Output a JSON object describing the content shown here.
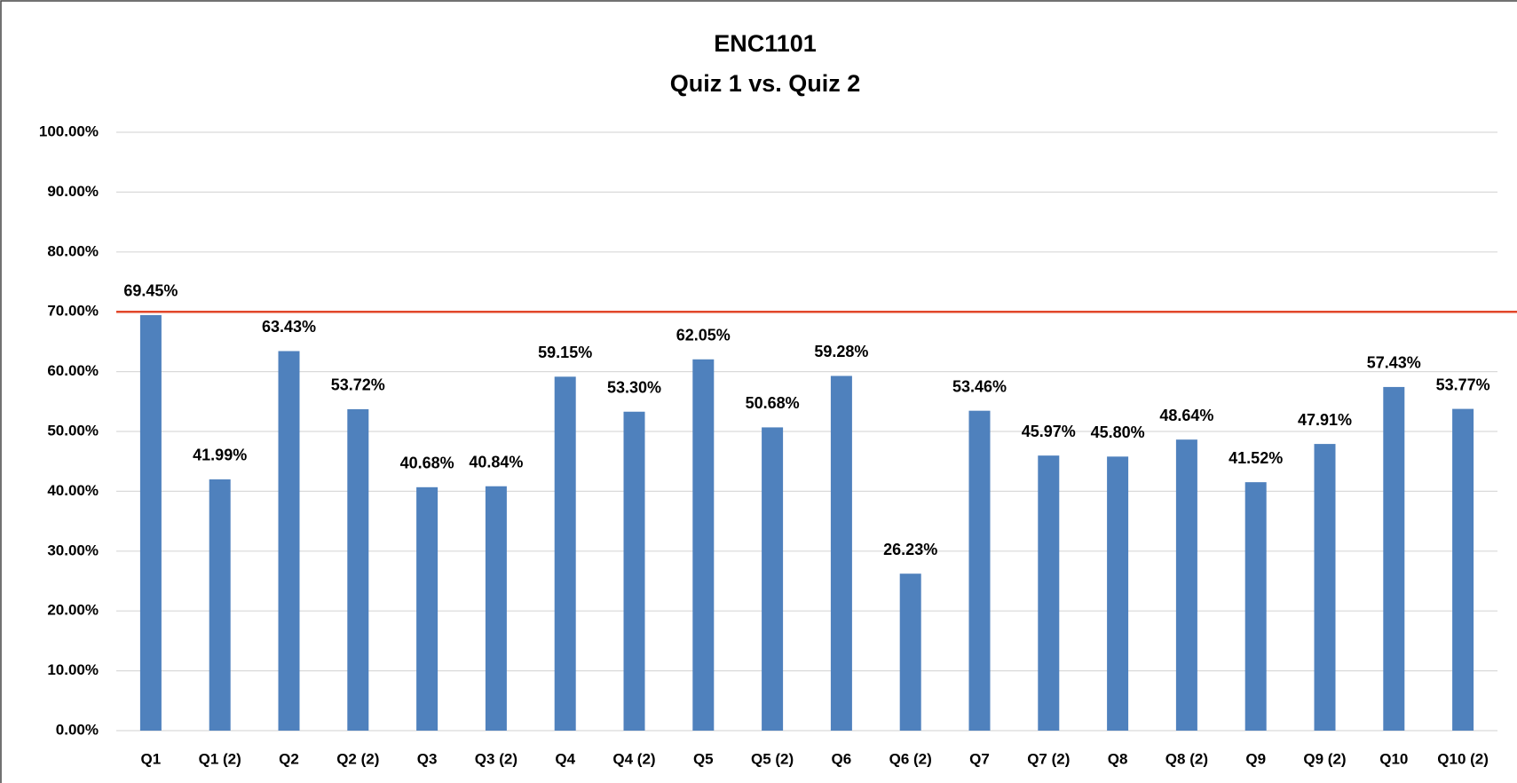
{
  "chart_data": {
    "type": "bar",
    "title": "ENC1101",
    "subtitle": "Quiz 1 vs. Quiz 2",
    "categories": [
      "Q1",
      "Q1 (2)",
      "Q2",
      "Q2 (2)",
      "Q3",
      "Q3 (2)",
      "Q4",
      "Q4 (2)",
      "Q5",
      "Q5 (2)",
      "Q6",
      "Q6 (2)",
      "Q7",
      "Q7 (2)",
      "Q8",
      "Q8 (2)",
      "Q9",
      "Q9 (2)",
      "Q10",
      "Q10 (2)"
    ],
    "values": [
      69.45,
      41.99,
      63.43,
      53.72,
      40.68,
      40.84,
      59.15,
      53.3,
      62.05,
      50.68,
      59.28,
      26.23,
      53.46,
      45.97,
      45.8,
      48.64,
      41.52,
      47.91,
      57.43,
      53.77
    ],
    "value_labels": [
      "69.45%",
      "41.99%",
      "63.43%",
      "53.72%",
      "40.68%",
      "40.84%",
      "59.15%",
      "53.30%",
      "62.05%",
      "50.68%",
      "59.28%",
      "26.23%",
      "53.46%",
      "45.97%",
      "45.80%",
      "48.64%",
      "41.52%",
      "47.91%",
      "57.43%",
      "53.77%"
    ],
    "color": "#4f81bd",
    "ylim": [
      0,
      100
    ],
    "yticks": [
      {
        "value": 0,
        "label": "0.00%"
      },
      {
        "value": 10,
        "label": "10.00%"
      },
      {
        "value": 20,
        "label": "20.00%"
      },
      {
        "value": 30,
        "label": "30.00%"
      },
      {
        "value": 40,
        "label": "40.00%"
      },
      {
        "value": 50,
        "label": "50.00%"
      },
      {
        "value": 60,
        "label": "60.00%"
      },
      {
        "value": 70,
        "label": "70.00%"
      },
      {
        "value": 80,
        "label": "80.00%"
      },
      {
        "value": 90,
        "label": "90.00%"
      },
      {
        "value": 100,
        "label": "100.00%"
      }
    ],
    "grid": true,
    "reference_line": {
      "value": 70,
      "color": "#e2472a"
    }
  }
}
